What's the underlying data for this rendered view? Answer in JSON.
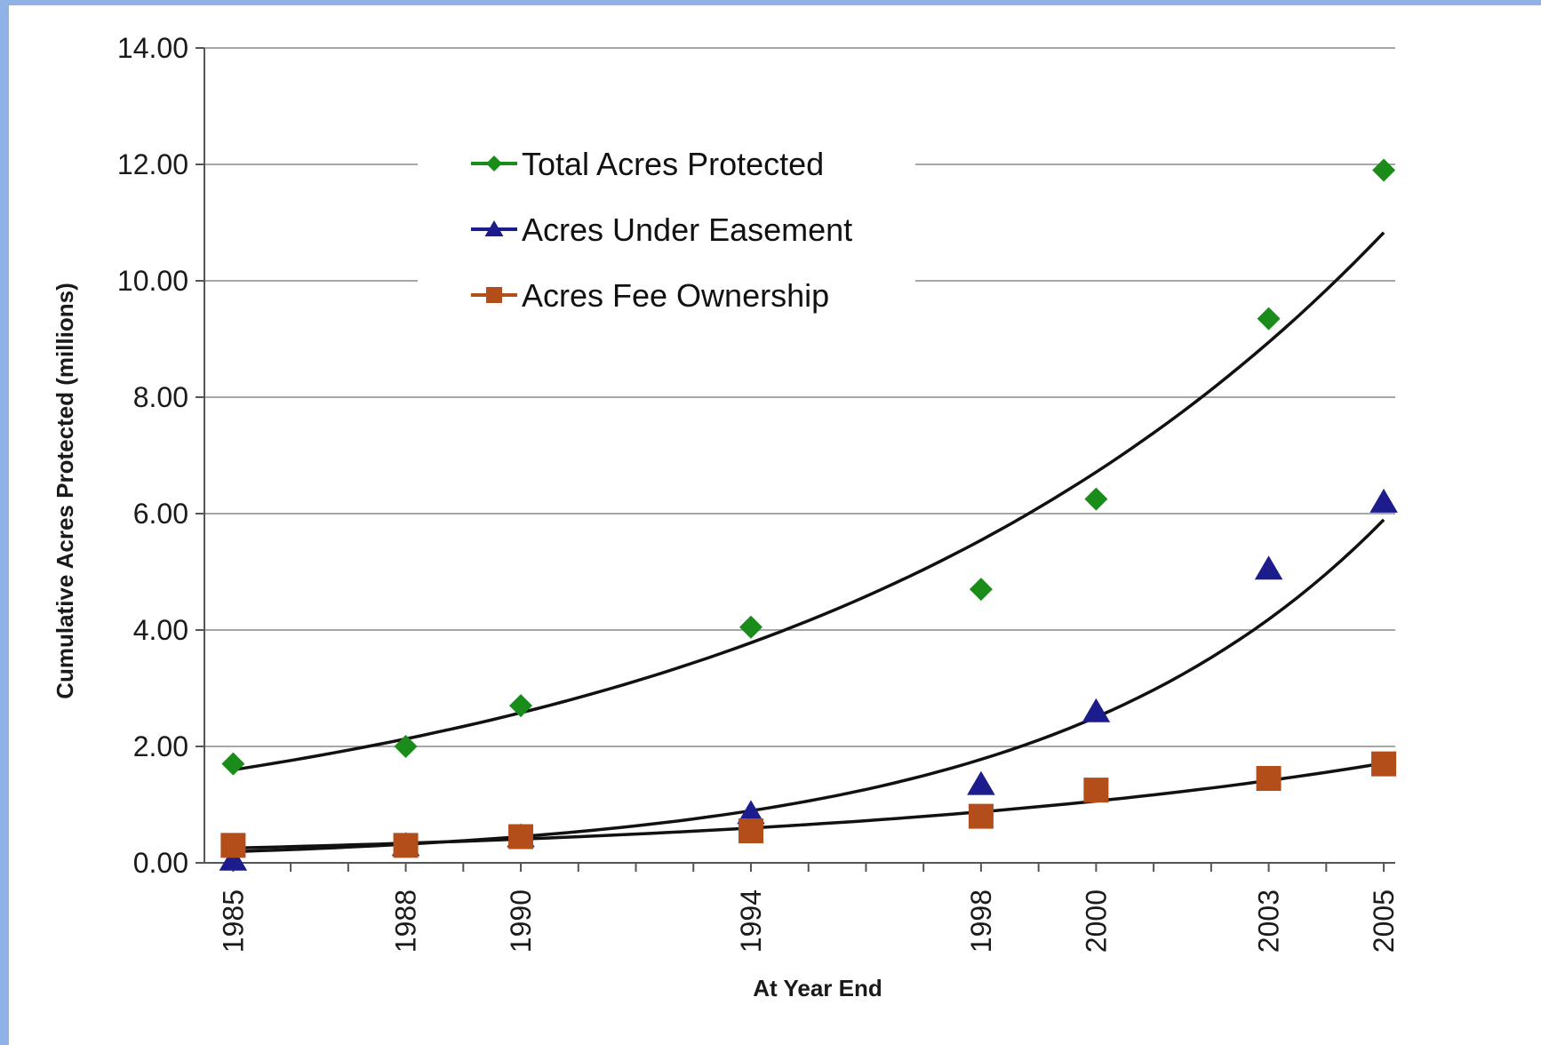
{
  "chart_data": {
    "type": "scatter",
    "title": "",
    "xlabel": "At Year End",
    "ylabel": "Cumulative Acres Protected (millions)",
    "x": [
      1985,
      1988,
      1990,
      1994,
      1998,
      2000,
      2003,
      2005
    ],
    "x_tick_labels": [
      "1985",
      "1988",
      "1990",
      "1994",
      "1998",
      "2000",
      "2003",
      "2005"
    ],
    "xlim": [
      1984.5,
      2005.2
    ],
    "ylim": [
      0,
      14
    ],
    "y_tick_labels": [
      "0.00",
      "2.00",
      "4.00",
      "6.00",
      "8.00",
      "10.00",
      "12.00",
      "14.00"
    ],
    "grid": true,
    "legend_position": "top-center",
    "series": [
      {
        "name": "Total Acres Protected",
        "marker": "diamond",
        "color": "#1a8c1a",
        "values": [
          1.7,
          2.0,
          2.7,
          4.05,
          4.7,
          6.25,
          9.35,
          11.9
        ],
        "trendline": "exponential",
        "trend_values": [
          1.6,
          2.1,
          2.6,
          3.8,
          5.6,
          6.7,
          8.9,
          10.8
        ]
      },
      {
        "name": "Acres Under Easement",
        "marker": "triangle",
        "color": "#1c1c8c",
        "values": [
          0.05,
          0.3,
          0.45,
          0.85,
          1.35,
          2.6,
          5.05,
          6.2
        ],
        "trendline": "exponential",
        "trend_values": [
          0.2,
          0.33,
          0.43,
          0.85,
          1.75,
          2.5,
          4.3,
          6.0
        ]
      },
      {
        "name": "Acres Fee Ownership",
        "marker": "square",
        "color": "#b34d1a",
        "values": [
          0.3,
          0.3,
          0.45,
          0.55,
          0.8,
          1.25,
          1.45,
          1.7
        ],
        "trendline": "exponential",
        "trend_values": [
          0.25,
          0.34,
          0.41,
          0.6,
          0.88,
          1.06,
          1.4,
          1.72
        ]
      }
    ]
  }
}
